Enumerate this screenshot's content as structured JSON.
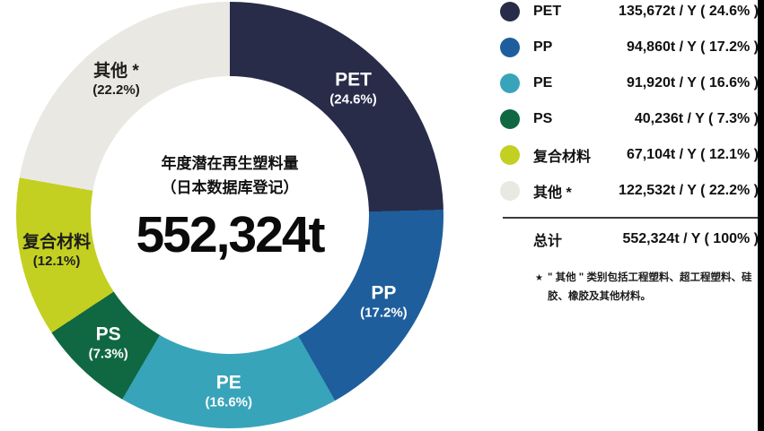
{
  "chart_data": {
    "type": "pie",
    "title": "年度潜在再生塑料量",
    "subtitle": "（日本数据库登记）",
    "center_total": "552,324t",
    "legend_position": "right",
    "slices": [
      {
        "key": "pet",
        "label": "PET",
        "value_t_per_year": 135672,
        "pct": 24.6,
        "pct_label": "(24.6%)",
        "legend_value": "135,672t / Y ( 24.6% )",
        "color": "#282c49",
        "label_color": "#ffffff"
      },
      {
        "key": "pp",
        "label": "PP",
        "value_t_per_year": 94860,
        "pct": 17.2,
        "pct_label": "(17.2%)",
        "legend_value": "94,860t / Y ( 17.2% )",
        "color": "#1e5e9c",
        "label_color": "#ffffff"
      },
      {
        "key": "pe",
        "label": "PE",
        "value_t_per_year": 91920,
        "pct": 16.6,
        "pct_label": "(16.6%)",
        "legend_value": "91,920t / Y ( 16.6% )",
        "color": "#38a4ba",
        "label_color": "#ffffff"
      },
      {
        "key": "ps",
        "label": "PS",
        "value_t_per_year": 40236,
        "pct": 7.3,
        "pct_label": "(7.3%)",
        "legend_value": "40,236t / Y ( 7.3% )",
        "color": "#106842",
        "label_color": "#ffffff"
      },
      {
        "key": "composite",
        "label": "复合材料",
        "value_t_per_year": 67104,
        "pct": 12.1,
        "pct_label": "(12.1%)",
        "legend_value": "67,104t / Y ( 12.1% )",
        "color": "#c3d021",
        "label_color": "#1d1d1b"
      },
      {
        "key": "other",
        "label": "其他 *",
        "value_t_per_year": 122532,
        "pct": 22.2,
        "pct_label": "(22.2%)",
        "legend_value": "122,532t / Y ( 22.2% )",
        "color": "#e9e8e2",
        "label_color": "#1d1d1b"
      }
    ],
    "total": {
      "label": "总计",
      "value_t_per_year": 552324,
      "legend_value": "552,324t / Y ( 100% )"
    },
    "footnote_marker": "★",
    "footnote": "\" 其他 \" 类别包括工程塑料、超工程塑料、硅胶、橡胶及其他材料。"
  }
}
